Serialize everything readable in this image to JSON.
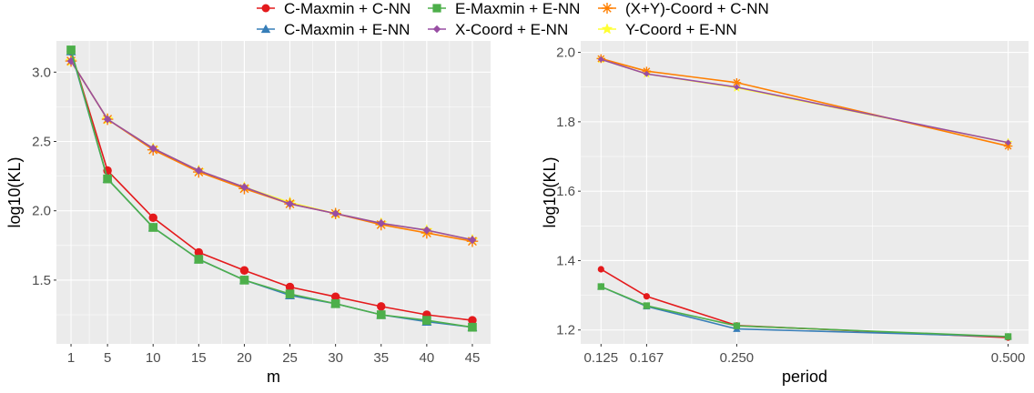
{
  "legend": [
    {
      "label": "C-Maxmin + C-NN",
      "color": "#E41A1C",
      "shape": "circle"
    },
    {
      "label": "C-Maxmin + E-NN",
      "color": "#377EB8",
      "shape": "triangle"
    },
    {
      "label": "E-Maxmin + E-NN",
      "color": "#4DAF4A",
      "shape": "square"
    },
    {
      "label": "X-Coord + E-NN",
      "color": "#984EA3",
      "shape": "diamond"
    },
    {
      "label": "(X+Y)-Coord + C-NN",
      "color": "#FF7F00",
      "shape": "asterisk"
    },
    {
      "label": "Y-Coord + E-NN",
      "color": "#FFFF33",
      "shape": "star"
    }
  ],
  "chart_data": [
    {
      "type": "line",
      "xlabel": "m",
      "ylabel": "log10(KL)",
      "x": [
        1,
        5,
        10,
        15,
        20,
        25,
        30,
        35,
        40,
        45
      ],
      "xlim": [
        -0.6,
        47.0
      ],
      "ylim": [
        1.04,
        3.225
      ],
      "xticks": [
        1,
        5,
        10,
        15,
        20,
        25,
        30,
        35,
        40,
        45
      ],
      "yticks": [
        1.5,
        2.0,
        2.5,
        3.0
      ],
      "ytick_labels": [
        "1.5",
        "2.0",
        "2.5",
        "3.0"
      ],
      "grid": true,
      "series": [
        {
          "name": "C-Maxmin + C-NN",
          "values": [
            3.15,
            2.29,
            1.95,
            1.7,
            1.57,
            1.45,
            1.38,
            1.31,
            1.25,
            1.21
          ]
        },
        {
          "name": "C-Maxmin + E-NN",
          "values": [
            3.15,
            2.23,
            1.88,
            1.65,
            1.5,
            1.39,
            1.33,
            1.25,
            1.2,
            1.16
          ]
        },
        {
          "name": "E-Maxmin + E-NN",
          "values": [
            3.16,
            2.23,
            1.88,
            1.65,
            1.5,
            1.4,
            1.33,
            1.25,
            1.21,
            1.16
          ]
        },
        {
          "name": "X-Coord + E-NN",
          "values": [
            3.08,
            2.66,
            2.45,
            2.29,
            2.17,
            2.05,
            1.98,
            1.91,
            1.86,
            1.79
          ]
        },
        {
          "name": "(X+Y)-Coord + C-NN",
          "values": [
            3.08,
            2.66,
            2.44,
            2.28,
            2.16,
            2.05,
            1.98,
            1.9,
            1.84,
            1.78
          ]
        },
        {
          "name": "Y-Coord + E-NN",
          "values": [
            3.08,
            2.66,
            2.45,
            2.29,
            2.17,
            2.06,
            1.98,
            1.91,
            1.86,
            1.79
          ]
        }
      ]
    },
    {
      "type": "line",
      "xlabel": "period",
      "ylabel": "log10(KL)",
      "x": [
        0.125,
        0.167,
        0.25,
        0.5
      ],
      "xlim": [
        0.1063,
        0.5188
      ],
      "ylim": [
        1.16,
        2.033
      ],
      "xticks": [
        0.125,
        0.167,
        0.25,
        0.5
      ],
      "xtick_labels": [
        "0.125",
        "0.167",
        "0.250",
        "0.500"
      ],
      "yticks": [
        1.2,
        1.4,
        1.6,
        1.8,
        2.0
      ],
      "ytick_labels": [
        "1.2",
        "1.4",
        "1.6",
        "1.8",
        "2.0"
      ],
      "grid": true,
      "series": [
        {
          "name": "C-Maxmin + C-NN",
          "values": [
            1.375,
            1.297,
            1.213,
            1.178
          ]
        },
        {
          "name": "C-Maxmin + E-NN",
          "values": [
            1.325,
            1.268,
            1.203,
            1.181
          ]
        },
        {
          "name": "E-Maxmin + E-NN",
          "values": [
            1.325,
            1.27,
            1.212,
            1.181
          ]
        },
        {
          "name": "X-Coord + E-NN",
          "values": [
            1.98,
            1.938,
            1.9,
            1.74
          ]
        },
        {
          "name": "(X+Y)-Coord + C-NN",
          "values": [
            1.982,
            1.946,
            1.913,
            1.73
          ]
        },
        {
          "name": "Y-Coord + E-NN",
          "values": [
            1.98,
            1.938,
            1.898,
            1.74
          ]
        }
      ]
    }
  ]
}
